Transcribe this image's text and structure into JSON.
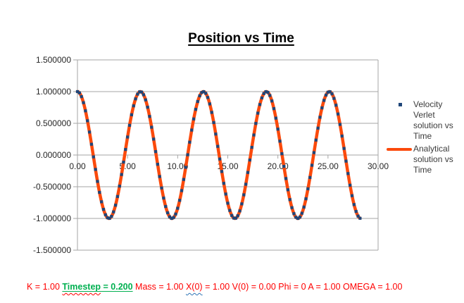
{
  "title": {
    "text": "Position vs Time"
  },
  "colors": {
    "analytical_line": "#FB4A0C",
    "verlet_marker": "#1F4679",
    "gridline": "#A6A6A6",
    "axis": "#A6A6A6",
    "tick_label": "#262626",
    "legend_text": "#3B3B3B",
    "caption_red": "#FF0000",
    "caption_green": "#00B050",
    "squiggle_red": "#FF0000",
    "squiggle_blue": "#2E74B5",
    "background": "#FFFFFF"
  },
  "chart_data": {
    "type": "line",
    "title": "Position vs Time",
    "xlabel": "",
    "ylabel": "",
    "xlim": [
      0,
      30
    ],
    "ylim": [
      -1.5,
      1.5
    ],
    "grid": "horizontal-only",
    "legend_position": "right",
    "x_ticks": [
      {
        "value": 0,
        "label": "0.00"
      },
      {
        "value": 5,
        "label": "5.00"
      },
      {
        "value": 10,
        "label": "10.00"
      },
      {
        "value": 15,
        "label": "15.00"
      },
      {
        "value": 20,
        "label": "20.00"
      },
      {
        "value": 25,
        "label": "25.00"
      },
      {
        "value": 30,
        "label": "30.00"
      }
    ],
    "y_ticks": [
      {
        "value": 1.5,
        "label": "1.500000"
      },
      {
        "value": 1.0,
        "label": "1.000000"
      },
      {
        "value": 0.5,
        "label": "0.500000"
      },
      {
        "value": 0.0,
        "label": "0.000000"
      },
      {
        "value": -0.5,
        "label": "-0.500000"
      },
      {
        "value": -1.0,
        "label": "-1.000000"
      },
      {
        "value": -1.5,
        "label": "-1.500000"
      }
    ],
    "series": [
      {
        "name": "Velocity Verlet solution vs Time",
        "style": "scatter",
        "marker": "square",
        "color": "#1F4679",
        "marker_size": 4.2,
        "formula": "x(t) = A*cos(omega*t + phi)",
        "amplitude": 1.0,
        "omega": 1.0,
        "phi": 0.0,
        "t_start": 0.0,
        "t_end": 28.2,
        "t_step": 0.2
      },
      {
        "name": "Analytical solution vs Time",
        "style": "line",
        "color": "#FB4A0C",
        "stroke_width": 4.5,
        "formula": "x(t) = A*cos(omega*t + phi)",
        "amplitude": 1.0,
        "omega": 1.0,
        "phi": 0.0,
        "t_start": 0.0,
        "t_end": 28.2,
        "t_step": 0.05
      }
    ]
  },
  "caption": {
    "segments": [
      {
        "text": "K = 1.00 ",
        "color": "#FF0000"
      },
      {
        "text": "Timestep",
        "color": "#00B050",
        "bold": true,
        "underline": true,
        "squiggle": "#FF0000"
      },
      {
        "text": " = 0.200",
        "color": "#00B050",
        "bold": true,
        "underline": true
      },
      {
        "text": " Mass = 1.00 ",
        "color": "#FF0000"
      },
      {
        "text": "X(0)",
        "color": "#FF0000",
        "squiggle": "#2E74B5"
      },
      {
        "text": " = 1.00 V(0) = 0.00 Phi = 0 A = 1.00 OMEGA = 1.00",
        "color": "#FF0000"
      }
    ]
  }
}
